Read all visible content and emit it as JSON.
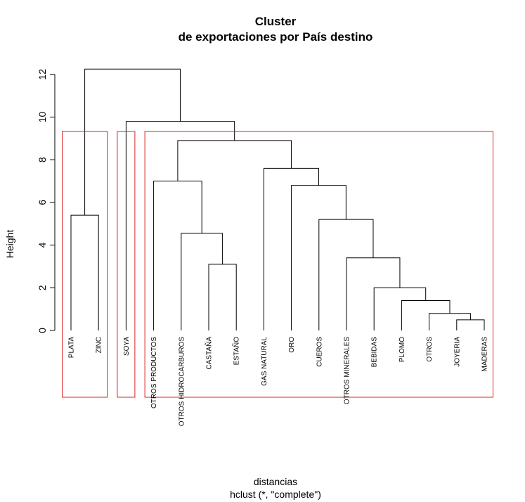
{
  "chart_data": {
    "type": "dendrogram",
    "title": "Cluster",
    "subtitle": "de exportaciones por País destino",
    "ylabel": "Height",
    "xlabel": "distancias",
    "sub_label": "hclust (*, \"complete\")",
    "ylim": [
      0,
      12
    ],
    "yticks": [
      0,
      2,
      4,
      6,
      8,
      10,
      12
    ],
    "leaves": [
      "PLATA",
      "ZINC",
      "SOYA",
      "OTROS PRODUCTOS",
      "OTROS HIDROCARBUROS",
      "CASTAÑA",
      "ESTAÑO",
      "GAS NATURAL",
      "ORO",
      "CUEROS",
      "OTROS MINERALES",
      "BEBIDAS",
      "PLOMO",
      "OTROS",
      "JOYERIA",
      "MADERAS"
    ],
    "merges": [
      {
        "left": 14,
        "right": 15,
        "height": 0.5
      },
      {
        "left": 13,
        "right": "m0",
        "height": 0.8
      },
      {
        "left": 12,
        "right": "m1",
        "height": 1.4
      },
      {
        "left": 11,
        "right": "m2",
        "height": 2.0
      },
      {
        "left": 10,
        "right": "m3",
        "height": 3.4
      },
      {
        "left": 5,
        "right": 6,
        "height": 3.1
      },
      {
        "left": 9,
        "right": "m4",
        "height": 5.2
      },
      {
        "left": 4,
        "right": "m5",
        "height": 4.55
      },
      {
        "left": 0,
        "right": 1,
        "height": 5.4
      },
      {
        "left": 8,
        "right": "m6",
        "height": 6.8
      },
      {
        "left": 3,
        "right": "m7",
        "height": 7.0
      },
      {
        "left": 7,
        "right": "m9",
        "height": 7.6
      },
      {
        "left": "m10",
        "right": "m11",
        "height": 8.9
      },
      {
        "left": 2,
        "right": "m12",
        "height": 9.8
      },
      {
        "left": "m8",
        "right": "m13",
        "height": 12.25
      }
    ],
    "cluster_boxes": [
      {
        "from": 0,
        "to": 1,
        "color": "#dd2222"
      },
      {
        "from": 2,
        "to": 2,
        "color": "#dd2222"
      },
      {
        "from": 3,
        "to": 15,
        "color": "#dd2222"
      }
    ],
    "colors": {
      "tree": "#000000",
      "box": "#dd2222"
    }
  }
}
